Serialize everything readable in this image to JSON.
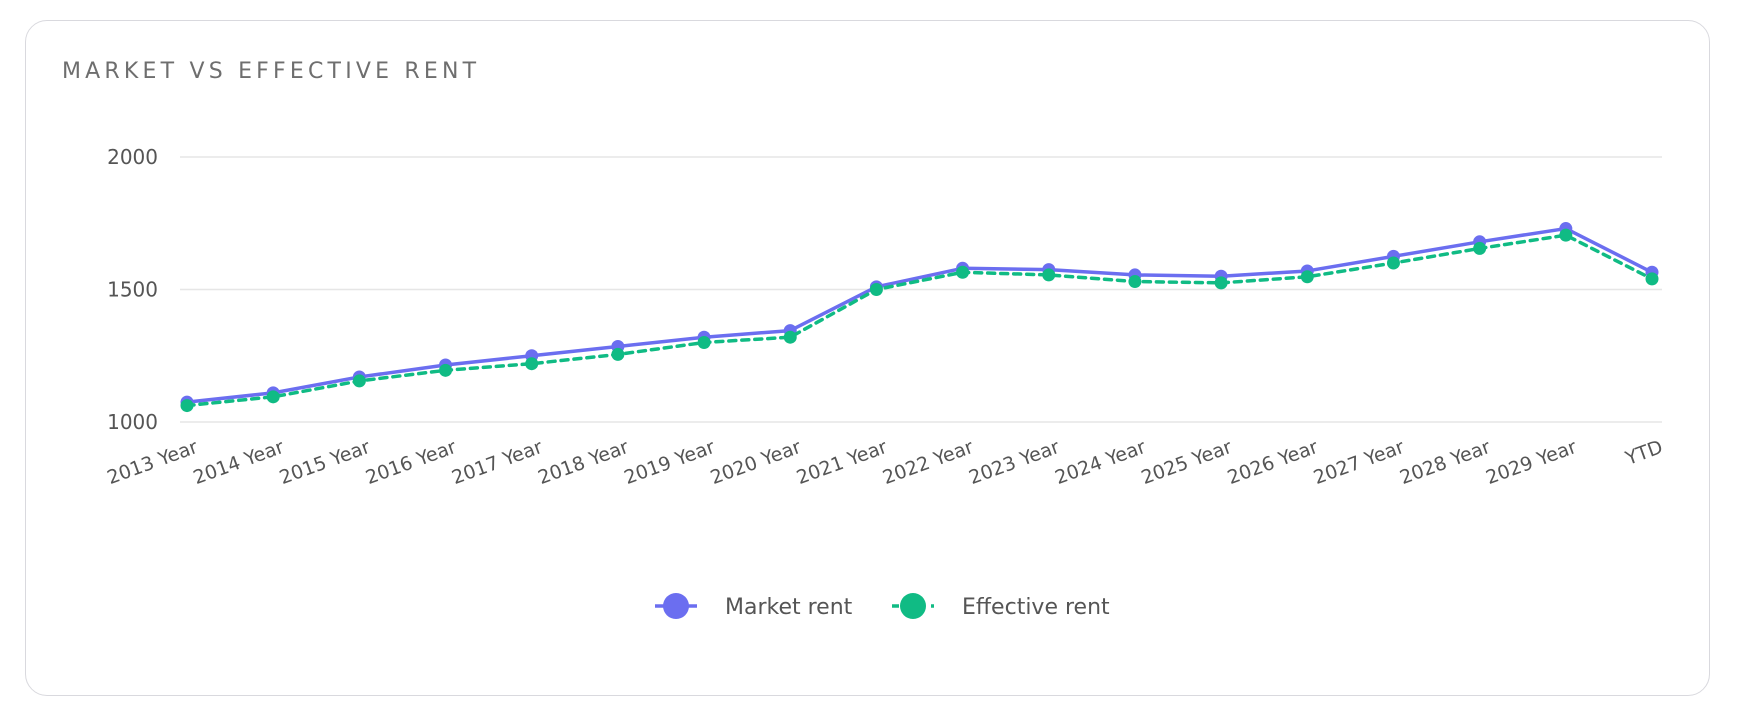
{
  "card": {
    "title": "MARKET VS EFFECTIVE RENT"
  },
  "chart_data": {
    "type": "line",
    "title": "MARKET VS EFFECTIVE RENT",
    "xlabel": "",
    "ylabel": "",
    "categories": [
      "2013 Year",
      "2014 Year",
      "2015 Year",
      "2016 Year",
      "2017 Year",
      "2018 Year",
      "2019 Year",
      "2020 Year",
      "2021 Year",
      "2022 Year",
      "2023 Year",
      "2024 Year",
      "2025 Year",
      "2026 Year",
      "2027 Year",
      "2028 Year",
      "2029 Year",
      "YTD"
    ],
    "ylim": [
      1000,
      2000
    ],
    "yticks": [
      "1000",
      "1500",
      "2000"
    ],
    "grid": true,
    "legend": "bottom-center",
    "series": [
      {
        "name": "Market rent",
        "color": "#6b6ef0",
        "style": "solid",
        "values": [
          1075,
          1110,
          1170,
          1215,
          1250,
          1285,
          1320,
          1345,
          1510,
          1580,
          1575,
          1555,
          1550,
          1570,
          1625,
          1680,
          1730,
          1565
        ]
      },
      {
        "name": "Effective rent",
        "color": "#10bb84",
        "style": "dashed",
        "values": [
          1062,
          1095,
          1155,
          1195,
          1220,
          1255,
          1300,
          1320,
          1500,
          1565,
          1555,
          1530,
          1525,
          1548,
          1600,
          1655,
          1705,
          1540
        ]
      }
    ]
  }
}
